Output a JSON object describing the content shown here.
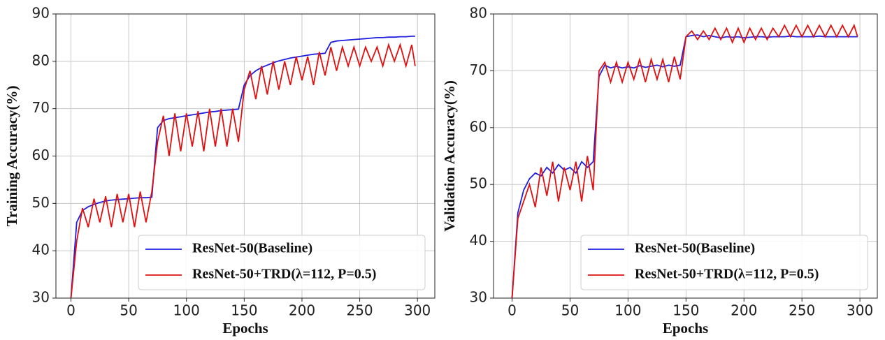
{
  "chart_data": [
    {
      "type": "line",
      "xlabel": "Epochs",
      "ylabel": "Training Accuracy(%)",
      "x": [
        0,
        5,
        10,
        15,
        20,
        25,
        30,
        35,
        40,
        45,
        50,
        55,
        60,
        65,
        70,
        75,
        80,
        85,
        90,
        95,
        100,
        105,
        110,
        115,
        120,
        125,
        130,
        135,
        140,
        145,
        150,
        155,
        160,
        165,
        170,
        175,
        180,
        185,
        190,
        195,
        200,
        205,
        210,
        215,
        220,
        225,
        230,
        235,
        240,
        245,
        250,
        255,
        260,
        265,
        270,
        275,
        280,
        285,
        290,
        295,
        298
      ],
      "series": [
        {
          "name": "ResNet-50(Baseline)",
          "color": "#1f1fe0",
          "values": [
            30,
            46,
            48.5,
            49.3,
            49.8,
            50.2,
            50.5,
            50.7,
            50.8,
            50.9,
            51,
            51.1,
            51.2,
            51.2,
            51.3,
            66,
            67.5,
            67.9,
            68.1,
            68.3,
            68.5,
            68.7,
            68.9,
            69.1,
            69.3,
            69.4,
            69.6,
            69.7,
            69.8,
            69.9,
            75,
            77,
            78,
            78.7,
            79.2,
            79.7,
            80.1,
            80.4,
            80.7,
            80.9,
            81.1,
            81.3,
            81.5,
            81.6,
            81.7,
            84,
            84.3,
            84.4,
            84.5,
            84.6,
            84.7,
            84.8,
            84.9,
            85,
            85,
            85.1,
            85.1,
            85.2,
            85.2,
            85.3,
            85.3
          ]
        },
        {
          "name": "ResNet-50+TRD(λ=112, P=0.5)",
          "color": "#e01010",
          "values": [
            30,
            42,
            49,
            45,
            51,
            46,
            51.5,
            45,
            52,
            46,
            52,
            45,
            52.5,
            46,
            52.5,
            63,
            68.5,
            60,
            69,
            61,
            69,
            62,
            69.5,
            61,
            70,
            62,
            70,
            62,
            70,
            63,
            74,
            78,
            72,
            79,
            73,
            80,
            74,
            80,
            75,
            81,
            76,
            81,
            75,
            82,
            77,
            83,
            78,
            83,
            79,
            83,
            79,
            83,
            80,
            83,
            79,
            83.5,
            80,
            83.5,
            79,
            83.5,
            79
          ]
        }
      ],
      "xlim": [
        -13,
        315
      ],
      "ylim": [
        30,
        90
      ],
      "xticks": [
        0,
        50,
        100,
        150,
        200,
        250,
        300
      ],
      "yticks": [
        30,
        40,
        50,
        60,
        70,
        80,
        90
      ],
      "grid": true,
      "legend": "lower right"
    },
    {
      "type": "line",
      "xlabel": "Epochs",
      "ylabel": "Validation Accuracy(%)",
      "x": [
        0,
        5,
        10,
        15,
        20,
        25,
        30,
        35,
        40,
        45,
        50,
        55,
        60,
        65,
        70,
        75,
        80,
        85,
        90,
        95,
        100,
        105,
        110,
        115,
        120,
        125,
        130,
        135,
        140,
        145,
        150,
        155,
        160,
        165,
        170,
        175,
        180,
        185,
        190,
        195,
        200,
        205,
        210,
        215,
        220,
        225,
        230,
        235,
        240,
        245,
        250,
        255,
        260,
        265,
        270,
        275,
        280,
        285,
        290,
        295,
        298
      ],
      "series": [
        {
          "name": "ResNet-50(Baseline)",
          "color": "#1f1fe0",
          "values": [
            30,
            45,
            49,
            51,
            52,
            51.5,
            53,
            52,
            53.5,
            52.5,
            53,
            52,
            54,
            53,
            54,
            69,
            71,
            70.5,
            70.8,
            70.5,
            70.7,
            70.5,
            70.9,
            70.6,
            70.8,
            71,
            70.7,
            71,
            70.8,
            71,
            76,
            76.2,
            76.3,
            76,
            76.2,
            76,
            75.8,
            76,
            75.9,
            76,
            75.8,
            75.9,
            76,
            76,
            75.9,
            76,
            76,
            76,
            76.1,
            76,
            76,
            76,
            76,
            76.1,
            76,
            76,
            76,
            76,
            76,
            76,
            76
          ]
        },
        {
          "name": "ResNet-50+TRD(λ=112, P=0.5)",
          "color": "#e01010",
          "values": [
            30,
            44,
            47,
            50,
            46,
            53,
            48,
            54,
            47,
            53,
            49,
            54,
            47,
            55,
            49,
            70,
            71.5,
            68,
            71.5,
            68,
            71.5,
            68.5,
            72,
            68,
            72,
            68.5,
            72,
            68,
            72.5,
            68.5,
            76,
            77,
            75.5,
            77,
            75.5,
            77.5,
            75.5,
            77.5,
            75,
            77.5,
            75,
            77.5,
            75.5,
            77.5,
            75.5,
            77.5,
            76,
            78,
            76,
            78,
            76,
            78,
            76,
            78,
            76,
            78,
            76,
            78,
            76,
            78,
            76
          ]
        }
      ],
      "xlim": [
        -16,
        315
      ],
      "ylim": [
        30,
        80
      ],
      "xticks": [
        0,
        50,
        100,
        150,
        200,
        250,
        300
      ],
      "yticks": [
        30,
        40,
        50,
        60,
        70,
        80
      ],
      "grid": true,
      "legend": "lower right"
    }
  ]
}
